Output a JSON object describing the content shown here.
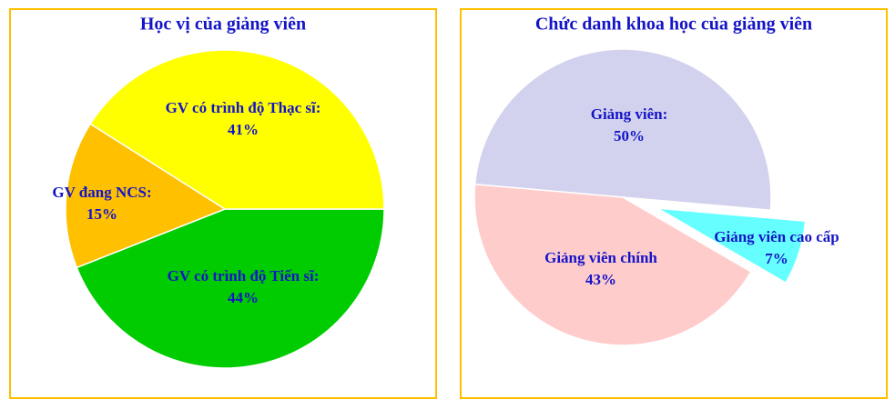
{
  "chart_data": [
    {
      "type": "pie",
      "title": "Học vị của giảng viên",
      "categories": [
        "GV có trình độ Tiến sĩ:",
        "GV đang NCS:",
        "GV có trình độ Thạc sĩ:"
      ],
      "values": [
        44,
        15,
        41
      ],
      "value_labels": [
        "44%",
        "15%",
        "41%"
      ],
      "colors": [
        "#00cc00",
        "#ffc000",
        "#ffff00"
      ],
      "explode": [
        false,
        false,
        false
      ]
    },
    {
      "type": "pie",
      "title": "Chức danh khoa học của giảng viên",
      "categories": [
        "Giảng viên:",
        "Giảng viên cao cấp",
        "Giảng viên chính"
      ],
      "values": [
        50,
        7,
        43
      ],
      "value_labels": [
        "50%",
        "7%",
        "43%"
      ],
      "colors": [
        "#d2d2ee",
        "#66ffff",
        "#ffcccc"
      ],
      "explode": [
        false,
        true,
        false
      ]
    }
  ]
}
